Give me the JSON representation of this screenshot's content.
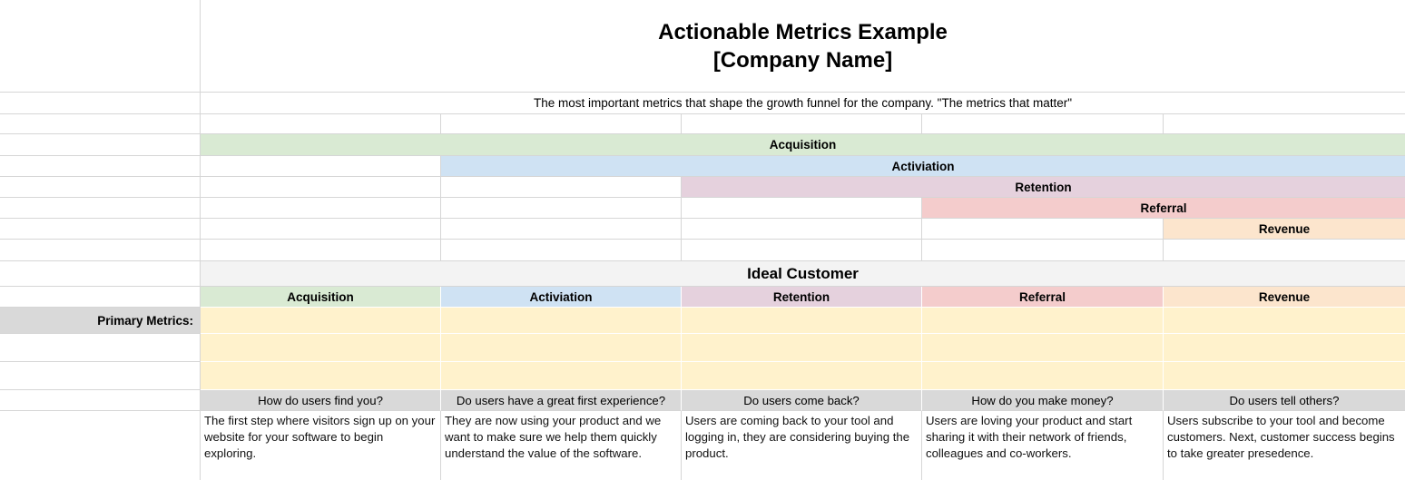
{
  "sheet": {
    "title_line1": "Actionable Metrics Example",
    "title_line2": "[Company Name]",
    "subtitle": "The most important metrics that shape the growth funnel for the company. \"The metrics that matter\"",
    "section_header": "Ideal Customer",
    "primary_metrics_label": "Primary Metrics:"
  },
  "funnel_bands": [
    {
      "label": "Acquisition",
      "color": "#d9ead3"
    },
    {
      "label": "Activiation",
      "color": "#cfe2f3"
    },
    {
      "label": "Retention",
      "color": "#e5d1dd"
    },
    {
      "label": "Referral",
      "color": "#f4cccc"
    },
    {
      "label": "Revenue",
      "color": "#fce5cd"
    }
  ],
  "columns": [
    {
      "header": "Acquisition",
      "color": "#d9ead3",
      "question": "How do users find you?",
      "description": "The first step where visitors sign up on your website for your software to begin exploring."
    },
    {
      "header": "Activiation",
      "color": "#cfe2f3",
      "question": "Do users have a great first experience?",
      "description": "They are now using your product and we want to make sure we help them quickly understand the value of the software."
    },
    {
      "header": "Retention",
      "color": "#e5d1dd",
      "question": "Do users come back?",
      "description": "Users are coming back to your tool and logging in, they are considering buying the product."
    },
    {
      "header": "Referral",
      "color": "#f4cccc",
      "question": "How do you make money?",
      "description": "Users are loving your product and start sharing it with their network of friends, colleagues and co-workers."
    },
    {
      "header": "Revenue",
      "color": "#fce5cd",
      "question": "Do users tell others?",
      "description": "Users subscribe to your tool and become customers. Next, customer success begins to take greater presedence."
    }
  ],
  "colors": {
    "primary_metrics_row": "#fff2cc",
    "label_gray": "#d9d9d9",
    "section_gray": "#f3f3f3",
    "gridline": "#d6d6d6"
  }
}
